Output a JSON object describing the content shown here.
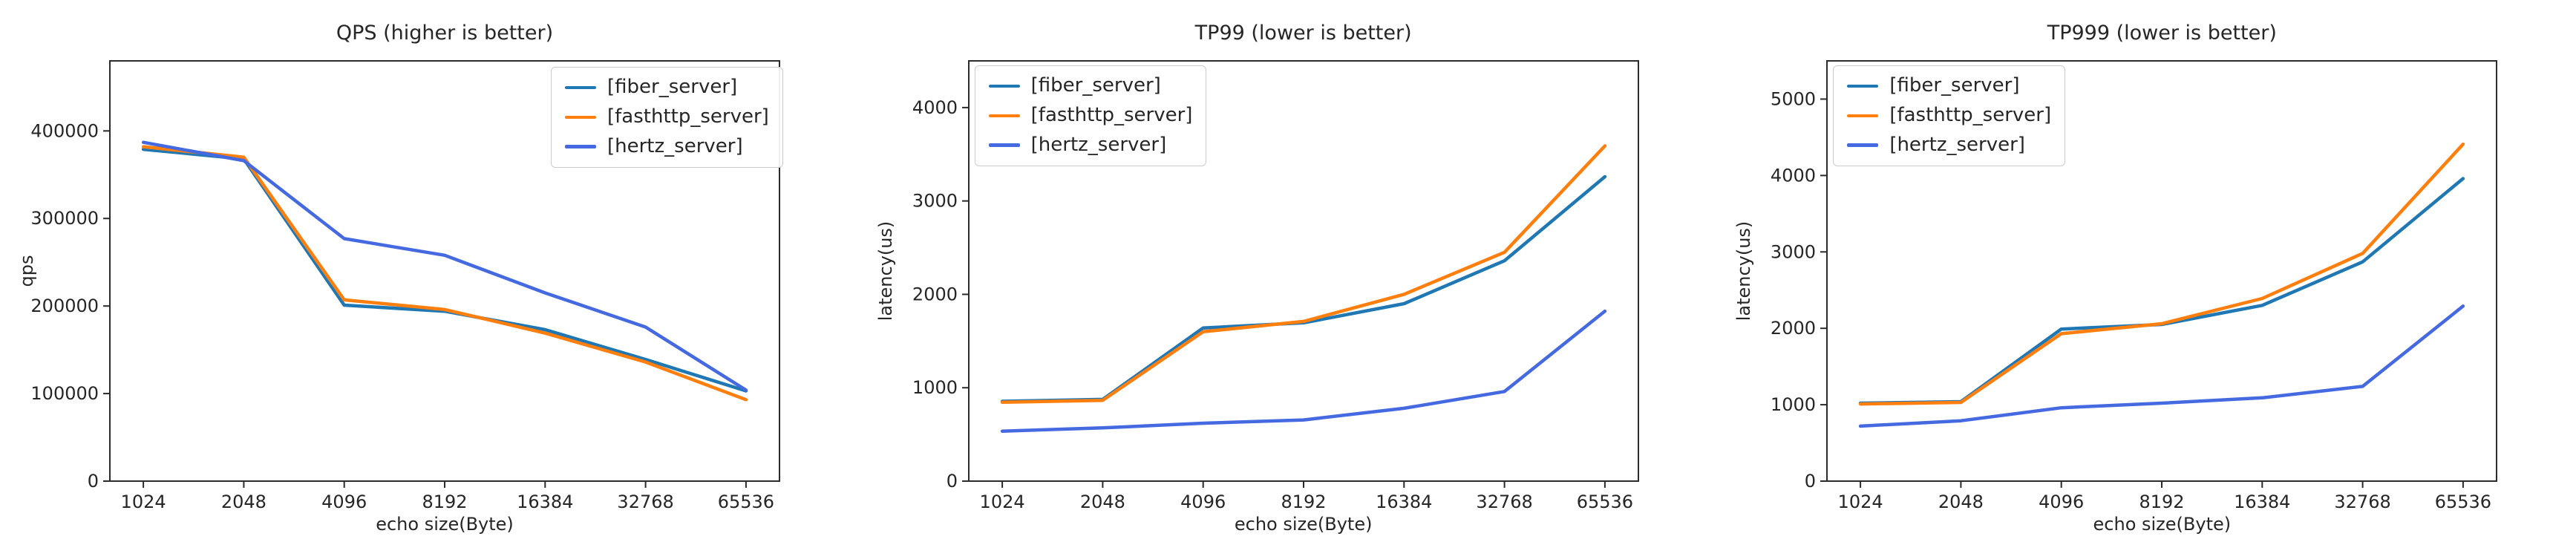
{
  "figure": {
    "background": "#ffffff",
    "colors": {
      "axis": "#2b2b2b",
      "text": "#262626",
      "legend_border": "#cccccc",
      "fiber_server": "#1f77b4",
      "fasthttp_server": "#ff7f0e",
      "hertz_server": "#4569e0"
    }
  },
  "chart_data": [
    {
      "type": "line",
      "title": "QPS (higher is better)",
      "xlabel": "echo size(Byte)",
      "ylabel": "qps",
      "grid": false,
      "legend_position": "top-right",
      "categories": [
        1024,
        2048,
        4096,
        8192,
        16384,
        32768,
        65536
      ],
      "x_tick_labels": [
        "1024",
        "2048",
        "4096",
        "8192",
        "16384",
        "32768",
        "65536"
      ],
      "y_ticks": [
        0,
        100000,
        200000,
        300000,
        400000
      ],
      "ylim": [
        0,
        480000
      ],
      "series": [
        {
          "name": "[fiber_server]",
          "color": "#1f77b4",
          "values": [
            379000,
            368000,
            201000,
            194000,
            173000,
            139000,
            103000
          ]
        },
        {
          "name": "[fasthttp_server]",
          "color": "#ff7f0e",
          "values": [
            382000,
            370000,
            207000,
            196000,
            169000,
            136000,
            93000
          ]
        },
        {
          "name": "[hertz_server]",
          "color": "#4569e0",
          "values": [
            387000,
            366000,
            277000,
            258000,
            215000,
            176000,
            104000
          ]
        }
      ]
    },
    {
      "type": "line",
      "title": "TP99 (lower is better)",
      "xlabel": "echo size(Byte)",
      "ylabel": "latency(us)",
      "grid": false,
      "legend_position": "top-left",
      "categories": [
        1024,
        2048,
        4096,
        8192,
        16384,
        32768,
        65536
      ],
      "x_tick_labels": [
        "1024",
        "2048",
        "4096",
        "8192",
        "16384",
        "32768",
        "65536"
      ],
      "y_ticks": [
        0,
        1000,
        2000,
        3000,
        4000
      ],
      "ylim": [
        0,
        4500
      ],
      "series": [
        {
          "name": "[fiber_server]",
          "color": "#1f77b4",
          "values": [
            855,
            875,
            1640,
            1695,
            1900,
            2360,
            3260
          ]
        },
        {
          "name": "[fasthttp_server]",
          "color": "#ff7f0e",
          "values": [
            845,
            865,
            1600,
            1710,
            2000,
            2450,
            3590
          ]
        },
        {
          "name": "[hertz_server]",
          "color": "#4569e0",
          "values": [
            535,
            570,
            620,
            655,
            780,
            960,
            1820
          ]
        }
      ]
    },
    {
      "type": "line",
      "title": "TP999 (lower is better)",
      "xlabel": "echo size(Byte)",
      "ylabel": "latency(us)",
      "grid": false,
      "legend_position": "top-left",
      "categories": [
        1024,
        2048,
        4096,
        8192,
        16384,
        32768,
        65536
      ],
      "x_tick_labels": [
        "1024",
        "2048",
        "4096",
        "8192",
        "16384",
        "32768",
        "65536"
      ],
      "y_ticks": [
        0,
        1000,
        2000,
        3000,
        4000,
        5000
      ],
      "ylim": [
        0,
        5500
      ],
      "series": [
        {
          "name": "[fiber_server]",
          "color": "#1f77b4",
          "values": [
            1020,
            1040,
            1990,
            2050,
            2300,
            2870,
            3960
          ]
        },
        {
          "name": "[fasthttp_server]",
          "color": "#ff7f0e",
          "values": [
            1010,
            1030,
            1930,
            2060,
            2390,
            2980,
            4410
          ]
        },
        {
          "name": "[hertz_server]",
          "color": "#4569e0",
          "values": [
            720,
            790,
            960,
            1020,
            1090,
            1240,
            2290
          ]
        }
      ]
    }
  ]
}
